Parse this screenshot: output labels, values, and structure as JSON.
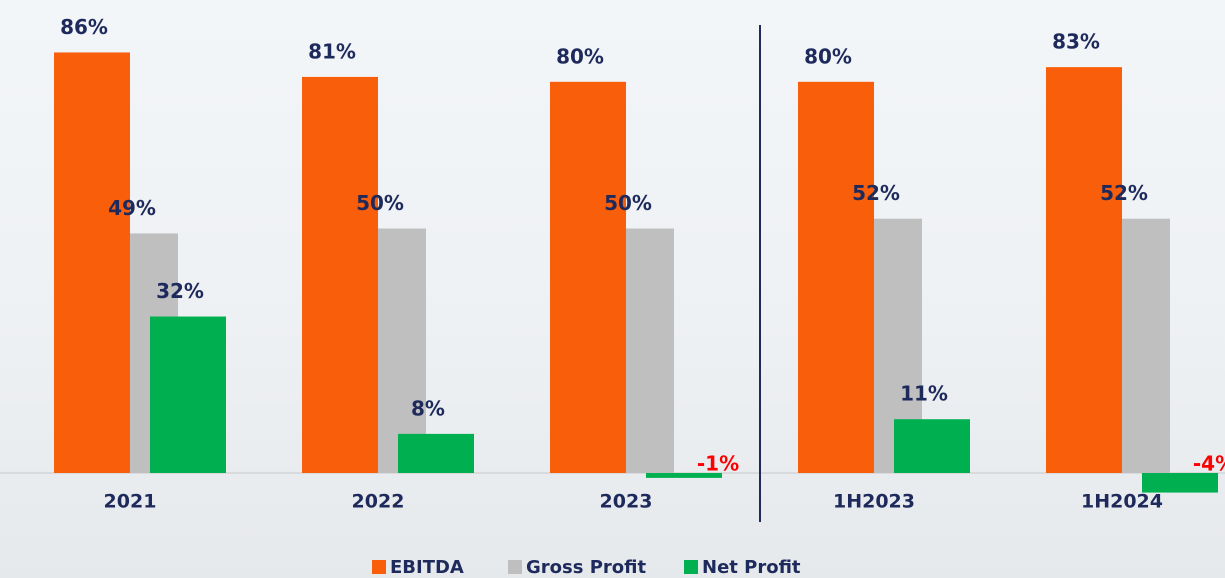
{
  "chart_data": {
    "type": "bar",
    "categories": [
      "2021",
      "2022",
      "2023",
      "1H2023",
      "1H2024"
    ],
    "series": [
      {
        "name": "EBITDA",
        "color": "#f95f0a",
        "values": [
          86,
          81,
          80,
          80,
          83
        ],
        "value_labels": [
          "86%",
          "81%",
          "80%",
          "80%",
          "83%"
        ]
      },
      {
        "name": "Gross Profit",
        "color": "#bfbfbf",
        "values": [
          49,
          50,
          50,
          52,
          52
        ],
        "value_labels": [
          "49%",
          "50%",
          "50%",
          "52%",
          "52%"
        ]
      },
      {
        "name": "Net Profit",
        "color": "#00b050",
        "values": [
          32,
          8,
          -1,
          11,
          -4
        ],
        "value_labels": [
          "32%",
          "8%",
          "-1%",
          "11%",
          "-4%"
        ]
      }
    ]
  }
}
